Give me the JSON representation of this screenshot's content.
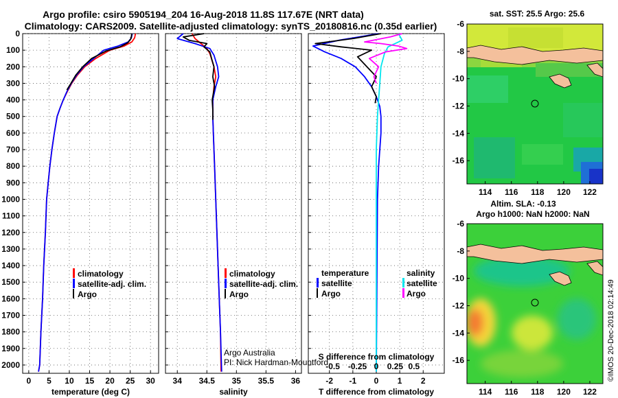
{
  "header": {
    "line1": "Argo profile: csiro 5905194_204 16-Aug-2018 11.8S 117.67E (NRT data)",
    "line2": "Climatology: CARS2009. Satellite-adjusted climatology: synTS_20180816.nc (0.35d earlier)"
  },
  "colors": {
    "climatology": "#ff0000",
    "satellite": "#0000ff",
    "argo": "#000000",
    "sat_salinity": "#00e5ee",
    "argo_salinity": "#ff00ff",
    "land": "#f4c09c"
  },
  "chart_data": [
    {
      "type": "line",
      "name": "temperature-profile",
      "xlabel": "temperature (deg C)",
      "ylabel": "",
      "xlim": [
        -1.5,
        32
      ],
      "ylim": [
        2050,
        0
      ],
      "xticks": [
        0,
        5,
        10,
        15,
        20,
        25,
        30
      ],
      "yticks": [
        0,
        100,
        200,
        300,
        400,
        500,
        600,
        700,
        800,
        900,
        1000,
        1100,
        1200,
        1300,
        1400,
        1500,
        1600,
        1700,
        1800,
        1900,
        2000
      ],
      "legend": [
        "climatology",
        "satellite-adj. clim.",
        "Argo"
      ],
      "series": [
        {
          "name": "climatology",
          "color": "#ff0000",
          "x": [
            26.3,
            26.1,
            25.4,
            23.5,
            20.0,
            16.5,
            13.8,
            12.0,
            10.6,
            9.5,
            8.5,
            7.7,
            7.0,
            6.3,
            5.7,
            5.2,
            4.8,
            4.4,
            4.1,
            3.7,
            3.4,
            3.0,
            2.7,
            2.4
          ],
          "y": [
            0,
            25,
            50,
            75,
            100,
            150,
            200,
            250,
            300,
            350,
            400,
            450,
            500,
            600,
            700,
            800,
            900,
            1000,
            1200,
            1400,
            1600,
            1800,
            2000,
            2040
          ]
        },
        {
          "name": "satellite-adj. clim.",
          "color": "#0000ff",
          "x": [
            25.5,
            25.3,
            24.5,
            22.0,
            18.5,
            16.0,
            13.5,
            11.8,
            10.5,
            9.4,
            8.5,
            7.7,
            7.0,
            6.3,
            5.7,
            5.2,
            4.8,
            4.4,
            4.1,
            3.7,
            3.4,
            3.0,
            2.7,
            2.4
          ],
          "y": [
            0,
            25,
            50,
            75,
            100,
            150,
            200,
            250,
            300,
            350,
            400,
            450,
            500,
            600,
            700,
            800,
            900,
            1000,
            1200,
            1400,
            1600,
            1800,
            2000,
            2040
          ]
        },
        {
          "name": "Argo",
          "color": "#000000",
          "x": [
            25.4,
            25.2,
            24.4,
            22.5,
            19.0,
            15.5,
            13.3,
            11.6,
            10.4,
            9.4
          ],
          "y": [
            0,
            30,
            55,
            80,
            105,
            150,
            200,
            250,
            300,
            340
          ]
        }
      ]
    },
    {
      "type": "line",
      "name": "salinity-profile",
      "xlabel": "salinity",
      "ylabel": "",
      "xlim": [
        33.8,
        36.1
      ],
      "ylim": [
        2050,
        0
      ],
      "xticks": [
        34,
        34.5,
        35,
        35.5,
        36
      ],
      "xticklabels": [
        "34",
        "34.5",
        "35",
        "35.5",
        "36"
      ],
      "legend": [
        "climatology",
        "satellite-adj. clim.",
        "Argo"
      ],
      "annotations": [
        "Argo Australia",
        "PI: Nick Hardman-Mountford"
      ],
      "series": [
        {
          "name": "climatology",
          "color": "#ff0000",
          "x": [
            34.25,
            34.3,
            34.4,
            34.5,
            34.55,
            34.62,
            34.65,
            34.62,
            34.6,
            34.6,
            34.61,
            34.63,
            34.65,
            34.67,
            34.69,
            34.71,
            34.73,
            34.74
          ],
          "y": [
            0,
            30,
            60,
            90,
            120,
            200,
            260,
            320,
            400,
            500,
            600,
            800,
            1000,
            1200,
            1400,
            1600,
            1800,
            2040
          ]
        },
        {
          "name": "satellite-adj. clim.",
          "color": "#0000ff",
          "x": [
            34.1,
            34.0,
            34.3,
            34.55,
            34.62,
            34.68,
            34.7,
            34.65,
            34.6,
            34.6,
            34.61,
            34.63,
            34.65,
            34.67,
            34.69,
            34.71,
            34.73,
            34.75
          ],
          "y": [
            0,
            30,
            60,
            90,
            130,
            200,
            260,
            320,
            400,
            500,
            600,
            800,
            1000,
            1200,
            1400,
            1600,
            1800,
            2040
          ]
        },
        {
          "name": "Argo",
          "color": "#000000",
          "x": [
            34.45,
            34.1,
            34.2,
            34.5,
            34.45,
            34.55,
            34.58,
            34.62,
            34.6,
            34.63,
            34.59,
            34.6,
            34.6
          ],
          "y": [
            0,
            20,
            40,
            60,
            80,
            110,
            150,
            200,
            260,
            320,
            400,
            460,
            520
          ]
        }
      ]
    },
    {
      "type": "line",
      "name": "difference-profile",
      "xlabel": "T difference from climatology",
      "secondary_xlabel": "S difference from climatology",
      "xlim": [
        -2.9,
        2.9
      ],
      "ylim": [
        2050,
        0
      ],
      "xticks": [
        -2,
        -1,
        0,
        1,
        2
      ],
      "xticklabels": [
        "-2",
        "-1",
        "0",
        "1",
        "2"
      ],
      "secondary_xticklabels": [
        "-0.5",
        "-0.25",
        "0",
        "0.25",
        "0.5"
      ],
      "legend_left": [
        "temperature",
        "satellite",
        "Argo"
      ],
      "legend_right": [
        "salinity",
        "satellite",
        "Argo"
      ],
      "series": [
        {
          "name": "T satellite",
          "color": "#0000ff",
          "x": [
            0.1,
            -1.6,
            -2.7,
            -2.2,
            -1.5,
            -0.9,
            -0.5,
            -0.2,
            0,
            0.15,
            0.2,
            0.2,
            0.15,
            0.1,
            0.05,
            0
          ],
          "y": [
            0,
            40,
            75,
            110,
            150,
            200,
            260,
            320,
            380,
            440,
            500,
            600,
            700,
            800,
            1000,
            2040
          ]
        },
        {
          "name": "T Argo",
          "color": "#000000",
          "x": [
            0.2,
            -1.0,
            -2.6,
            -1.5,
            -0.2,
            -0.8,
            -0.4,
            0,
            -0.2,
            0,
            -0.05
          ],
          "y": [
            0,
            30,
            60,
            80,
            100,
            140,
            200,
            260,
            320,
            380,
            420
          ]
        },
        {
          "name": "S satellite",
          "color": "#00e5ee",
          "x": [
            0.95,
            1.1,
            0.5,
            0.35,
            0.2,
            0.15,
            0.1,
            0.05,
            0,
            0,
            0
          ],
          "y": [
            0,
            40,
            80,
            120,
            200,
            300,
            400,
            500,
            700,
            1000,
            2040
          ]
        },
        {
          "name": "S Argo",
          "color": "#ff00ff",
          "x": [
            1.1,
            0.6,
            -0.5,
            0.2,
            0.95,
            1.3,
            0.4,
            -0.3,
            0.1,
            -0.1,
            0
          ],
          "y": [
            0,
            20,
            50,
            60,
            75,
            90,
            110,
            150,
            200,
            260,
            300
          ]
        }
      ]
    },
    {
      "type": "heatmap",
      "name": "sst-map",
      "title": "sat. SST: 25.5 Argo: 25.6",
      "xlim": [
        112.6,
        123
      ],
      "ylim": [
        -17.7,
        -6
      ],
      "xticks": [
        114,
        116,
        118,
        120,
        122
      ],
      "yticks": [
        -6,
        -8,
        -10,
        -12,
        -14,
        -16
      ],
      "marker": {
        "lon": 117.67,
        "lat": -11.8
      }
    },
    {
      "type": "heatmap",
      "name": "sla-map",
      "title": "Altim. SLA: -0.13",
      "subtitle": "Argo h1000: NaN h2000: NaN",
      "xlim": [
        112.6,
        123
      ],
      "ylim": [
        -17.7,
        -6
      ],
      "xticks": [
        114,
        116,
        118,
        120,
        122
      ],
      "yticks": [
        -6,
        -8,
        -10,
        -12,
        -14,
        -16
      ],
      "marker": {
        "lon": 117.67,
        "lat": -11.8
      }
    }
  ],
  "footer": {
    "credit": "©IMOS 20-Dec-2018 02:14:49"
  }
}
